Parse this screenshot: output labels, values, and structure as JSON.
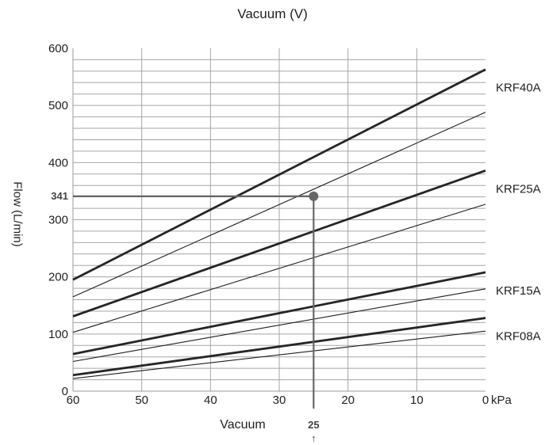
{
  "chart_data": {
    "type": "line",
    "title": "Vacuum (V)",
    "xlabel": "Vacuum",
    "ylabel": "Flow (L/min)",
    "x_unit": "kPa",
    "xlim": [
      60,
      0
    ],
    "ylim": [
      0,
      600
    ],
    "x_ticks": [
      60,
      50,
      40,
      30,
      20,
      10,
      0
    ],
    "y_ticks": [
      0,
      100,
      200,
      300,
      400,
      500,
      600
    ],
    "grid": true,
    "series": [
      {
        "name": "KRF40A",
        "x": [
          60,
          0
        ],
        "y": [
          195,
          563
        ],
        "weight": "bold"
      },
      {
        "name": "",
        "x": [
          60,
          0
        ],
        "y": [
          165,
          488
        ],
        "weight": "thin"
      },
      {
        "name": "KRF25A",
        "x": [
          60,
          0
        ],
        "y": [
          131,
          386
        ],
        "weight": "bold"
      },
      {
        "name": "",
        "x": [
          60,
          0
        ],
        "y": [
          103,
          327
        ],
        "weight": "thin"
      },
      {
        "name": "KRF15A",
        "x": [
          60,
          0
        ],
        "y": [
          65,
          208
        ],
        "weight": "bold"
      },
      {
        "name": "",
        "x": [
          60,
          0
        ],
        "y": [
          52,
          179
        ],
        "weight": "thin"
      },
      {
        "name": "KRF08A",
        "x": [
          60,
          0
        ],
        "y": [
          28,
          128
        ],
        "weight": "bold"
      },
      {
        "name": "",
        "x": [
          60,
          0
        ],
        "y": [
          22,
          105
        ],
        "weight": "thin"
      }
    ],
    "highlight": {
      "x": 25,
      "y": 341,
      "x_label": "25",
      "y_label": "341",
      "arrow": "↑"
    }
  }
}
